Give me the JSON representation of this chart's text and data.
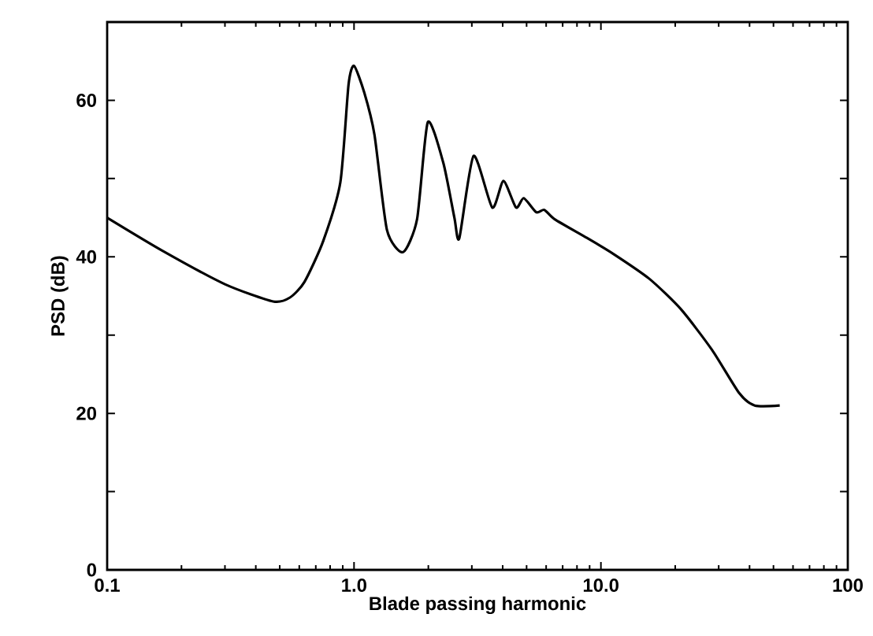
{
  "chart_data": {
    "type": "line",
    "xlabel": "Blade passing harmonic",
    "ylabel": "PSD (dB)",
    "log": "x",
    "xlim": [
      0.1,
      100
    ],
    "ylim": [
      0,
      70
    ],
    "xticks": [
      0.1,
      {
        "value": 1,
        "label": "1.0"
      },
      {
        "value": 10,
        "label": "10.0"
      },
      100
    ],
    "yticks": [
      0,
      {
        "value": 10,
        "label": null
      },
      20,
      {
        "value": 30,
        "label": null
      },
      40,
      {
        "value": 50,
        "label": null
      },
      60,
      {
        "value": 70,
        "label": null
      }
    ],
    "grid": false,
    "marker": "none",
    "line_style": "solid",
    "series": [
      {
        "color": "#000000",
        "x": [
          0.1,
          0.167,
          0.3,
          0.47,
          0.55,
          0.63,
          0.75,
          0.88,
          0.95,
          1.0,
          1.1,
          1.21,
          1.36,
          1.58,
          1.8,
          1.99,
          2.3,
          2.55,
          2.67,
          3.05,
          3.63,
          4.03,
          4.53,
          4.87,
          5.47,
          5.9,
          6.5,
          8.8,
          11.2,
          15.7,
          21.1,
          28.2,
          36.3,
          42,
          53
        ],
        "values": [
          45,
          40.8,
          36.5,
          34.3,
          34.8,
          36.8,
          42,
          49.5,
          62,
          64.4,
          61,
          55.6,
          43.4,
          40.6,
          44.8,
          57.2,
          52,
          45,
          42.4,
          52.9,
          46.3,
          49.7,
          46.3,
          47.5,
          45.7,
          46,
          44.8,
          42.4,
          40.4,
          37.2,
          33.3,
          28.1,
          22.6,
          21,
          21
        ]
      }
    ]
  }
}
